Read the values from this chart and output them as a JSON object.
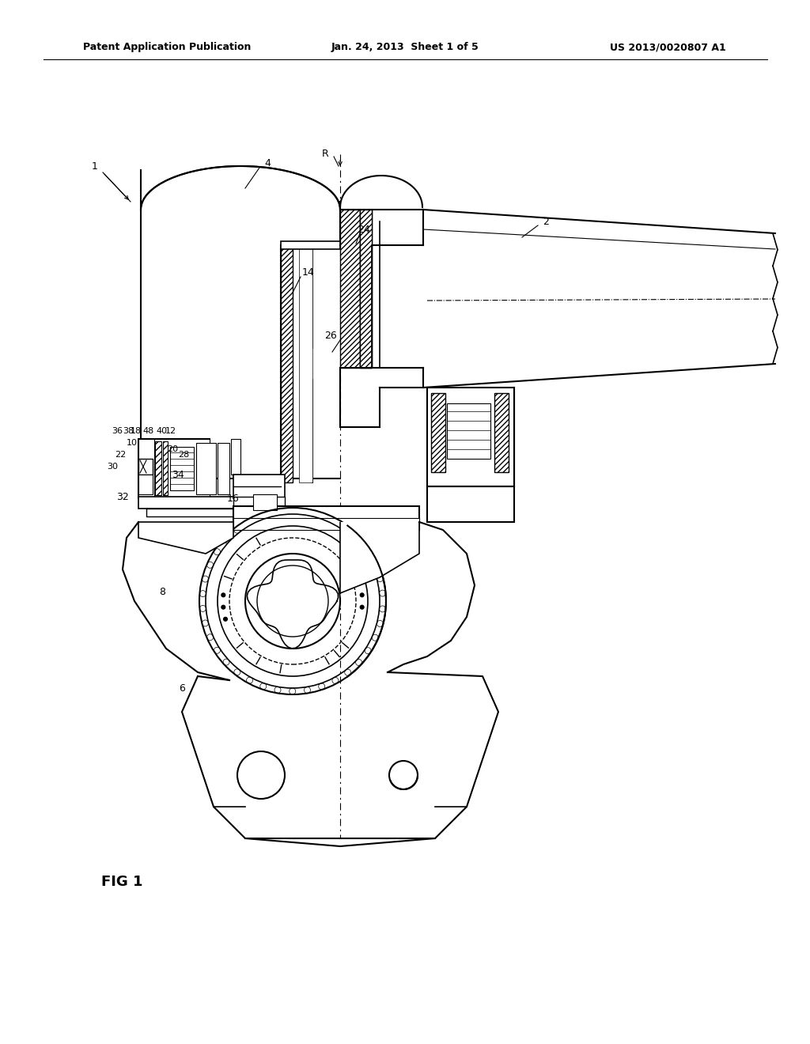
{
  "bg_color": "#ffffff",
  "header_left": "Patent Application Publication",
  "header_center": "Jan. 24, 2013  Sheet 1 of 5",
  "header_right": "US 2013/0020807 A1",
  "fig_label": "FIG 1"
}
